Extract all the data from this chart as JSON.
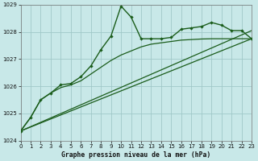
{
  "xlabel": "Graphe pression niveau de la mer (hPa)",
  "bg_color": "#c8e8e8",
  "grid_color": "#a0c8c8",
  "line_color": "#1a5c1a",
  "xlim": [
    0,
    23
  ],
  "ylim": [
    1024,
    1029
  ],
  "yticks": [
    1024,
    1025,
    1026,
    1027,
    1028,
    1029
  ],
  "xticks": [
    0,
    1,
    2,
    3,
    4,
    5,
    6,
    7,
    8,
    9,
    10,
    11,
    12,
    13,
    14,
    15,
    16,
    17,
    18,
    19,
    20,
    21,
    22,
    23
  ],
  "line1_x": [
    0,
    1,
    2,
    3,
    4,
    5,
    6,
    7,
    8,
    9,
    10,
    11,
    12,
    13,
    14,
    15,
    16,
    17,
    18,
    19,
    20,
    21,
    22,
    23
  ],
  "line1_y": [
    1024.35,
    1024.85,
    1025.5,
    1025.75,
    1026.05,
    1026.1,
    1026.35,
    1026.75,
    1027.35,
    1027.85,
    1028.95,
    1028.55,
    1027.75,
    1027.75,
    1027.75,
    1027.8,
    1028.1,
    1028.15,
    1028.2,
    1028.35,
    1028.25,
    1028.05,
    1028.05,
    1027.75
  ],
  "line2_x": [
    0,
    23
  ],
  "line2_y": [
    1024.35,
    1027.75
  ],
  "line3_x": [
    0,
    23
  ],
  "line3_y": [
    1024.35,
    1028.05
  ],
  "line4_x": [
    0,
    1,
    2,
    3,
    4,
    5,
    6,
    7,
    8,
    9,
    10,
    11,
    12,
    13,
    14,
    15,
    16,
    17,
    18,
    19,
    20,
    21,
    22,
    23
  ],
  "line4_y": [
    1024.35,
    1024.85,
    1025.5,
    1025.75,
    1025.95,
    1026.05,
    1026.2,
    1026.45,
    1026.7,
    1026.95,
    1027.15,
    1027.3,
    1027.45,
    1027.55,
    1027.6,
    1027.65,
    1027.7,
    1027.72,
    1027.74,
    1027.75,
    1027.75,
    1027.75,
    1027.75,
    1027.75
  ]
}
